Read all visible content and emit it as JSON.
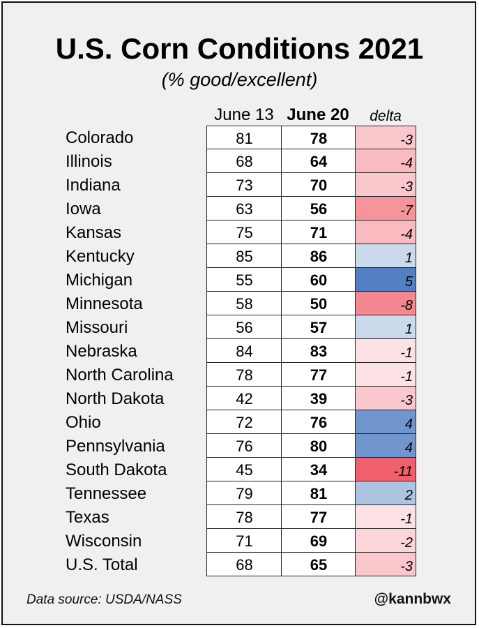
{
  "chart_data": {
    "type": "table",
    "title": "U.S. Corn Conditions 2021",
    "subtitle": "(% good/excellent)",
    "columns": [
      "June 13",
      "June 20",
      "delta"
    ],
    "rows": [
      {
        "state": "Colorado",
        "june13": 81,
        "june20": 78,
        "delta": -3
      },
      {
        "state": "Illinois",
        "june13": 68,
        "june20": 64,
        "delta": -4
      },
      {
        "state": "Indiana",
        "june13": 73,
        "june20": 70,
        "delta": -3
      },
      {
        "state": "Iowa",
        "june13": 63,
        "june20": 56,
        "delta": -7
      },
      {
        "state": "Kansas",
        "june13": 75,
        "june20": 71,
        "delta": -4
      },
      {
        "state": "Kentucky",
        "june13": 85,
        "june20": 86,
        "delta": 1
      },
      {
        "state": "Michigan",
        "june13": 55,
        "june20": 60,
        "delta": 5
      },
      {
        "state": "Minnesota",
        "june13": 58,
        "june20": 50,
        "delta": -8
      },
      {
        "state": "Missouri",
        "june13": 56,
        "june20": 57,
        "delta": 1
      },
      {
        "state": "Nebraska",
        "june13": 84,
        "june20": 83,
        "delta": -1
      },
      {
        "state": "North Carolina",
        "june13": 78,
        "june20": 77,
        "delta": -1
      },
      {
        "state": "North Dakota",
        "june13": 42,
        "june20": 39,
        "delta": -3
      },
      {
        "state": "Ohio",
        "june13": 72,
        "june20": 76,
        "delta": 4
      },
      {
        "state": "Pennsylvania",
        "june13": 76,
        "june20": 80,
        "delta": 4
      },
      {
        "state": "South Dakota",
        "june13": 45,
        "june20": 34,
        "delta": -11
      },
      {
        "state": "Tennessee",
        "june13": 79,
        "june20": 81,
        "delta": 2
      },
      {
        "state": "Texas",
        "june13": 78,
        "june20": 77,
        "delta": -1
      },
      {
        "state": "Wisconsin",
        "june13": 71,
        "june20": 69,
        "delta": -2
      },
      {
        "state": "U.S. Total",
        "june13": 68,
        "june20": 65,
        "delta": -3
      }
    ],
    "colors": {
      "positive": "#4a7abf",
      "negative": "#f0606a"
    }
  },
  "footer": {
    "source": "Data source: USDA/NASS",
    "handle": "@kannbwx"
  }
}
